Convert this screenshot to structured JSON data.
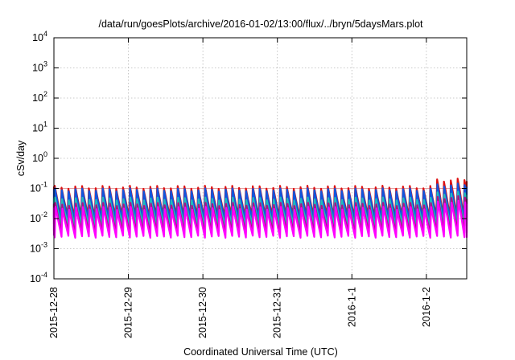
{
  "chart_data": {
    "type": "line",
    "title": "/data/run/goesPlots/archive/2016-01-02/13:00/flux/../bryn/5daysMars.plot",
    "xlabel": "Coordinated Universal Time (UTC)",
    "ylabel": "cSv/day",
    "yscale": "log",
    "ylim": [
      0.0001,
      10000
    ],
    "xlim": [
      "2015-12-28 00:00",
      "2016-01-02 13:00"
    ],
    "grid": true,
    "y_ticks": [
      {
        "base": "10",
        "exp": "-4"
      },
      {
        "base": "10",
        "exp": "-3"
      },
      {
        "base": "10",
        "exp": "-2"
      },
      {
        "base": "10",
        "exp": "-1"
      },
      {
        "base": "10",
        "exp": "0"
      },
      {
        "base": "10",
        "exp": "1"
      },
      {
        "base": "10",
        "exp": "2"
      },
      {
        "base": "10",
        "exp": "3"
      },
      {
        "base": "10",
        "exp": "4"
      }
    ],
    "x_ticks": [
      "2015-12-28",
      "2015-12-29",
      "2015-12-30",
      "2015-12-31",
      "2016-1-1",
      "2016-1-2"
    ],
    "reference_line": {
      "value": 0.1,
      "color": "#e8a0a0"
    },
    "pattern": {
      "description_values": "sawtooth per ~2.2h cycle",
      "period_hours": 2.2,
      "elevated_after": "2016-01-02 00:00"
    },
    "series": [
      {
        "color": "#dd1111",
        "peak": 0.11,
        "trough": 0.012,
        "late_peak": 0.19
      },
      {
        "color": "#1155dd",
        "peak": 0.09,
        "trough": 0.009,
        "late_peak": 0.13
      },
      {
        "color": "#22bbbb",
        "peak": 0.045,
        "trough": 0.006,
        "late_peak": 0.07
      },
      {
        "color": "#aa1188",
        "peak": 0.03,
        "trough": 0.0035,
        "late_peak": 0.05
      },
      {
        "color": "#ff00ff",
        "peak": 0.022,
        "trough": 0.0025,
        "late_peak": 0.035
      }
    ]
  }
}
